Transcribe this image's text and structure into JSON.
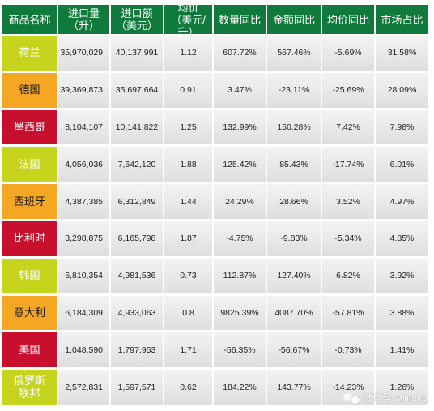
{
  "headers": [
    {
      "line1": "商品名称",
      "line2": ""
    },
    {
      "line1": "进口量",
      "line2": "（升）"
    },
    {
      "line1": "进口额",
      "line2": "（美元）"
    },
    {
      "line1": "均价",
      "line2": "（美元/升）"
    },
    {
      "line1": "数量同比",
      "line2": ""
    },
    {
      "line1": "金额同比",
      "line2": ""
    },
    {
      "line1": "均价同比",
      "line2": ""
    },
    {
      "line1": "市场占比",
      "line2": ""
    }
  ],
  "rows": [
    {
      "name": "荷兰",
      "name2": "",
      "color": "#c6d41d",
      "text_color": "#ffffff",
      "volume": "35,970,029",
      "amount": "40,137,991",
      "price": "1.12",
      "vol_yoy": "607.72%",
      "amt_yoy": "567.46%",
      "price_yoy": "-5.69%",
      "share": "31.58%"
    },
    {
      "name": "德国",
      "name2": "",
      "color": "#f5a623",
      "text_color": "#1a1a1a",
      "volume": "39,369,873",
      "amount": "35,697,664",
      "price": "0.91",
      "vol_yoy": "3.47%",
      "amt_yoy": "-23.11%",
      "price_yoy": "-25.69%",
      "share": "28.09%"
    },
    {
      "name": "墨西哥",
      "name2": "",
      "color": "#c8102e",
      "text_color": "#ffffff",
      "volume": "8,104,107",
      "amount": "10,141,822",
      "price": "1.25",
      "vol_yoy": "132.99%",
      "amt_yoy": "150.28%",
      "price_yoy": "7.42%",
      "share": "7.98%"
    },
    {
      "name": "法国",
      "name2": "",
      "color": "#c6d41d",
      "text_color": "#ffffff",
      "volume": "4,056,036",
      "amount": "7,642,120",
      "price": "1.88",
      "vol_yoy": "125.42%",
      "amt_yoy": "85.43%",
      "price_yoy": "-17.74%",
      "share": "6.01%"
    },
    {
      "name": "西班牙",
      "name2": "",
      "color": "#f5a623",
      "text_color": "#1a1a1a",
      "volume": "4,387,385",
      "amount": "6,312,849",
      "price": "1.44",
      "vol_yoy": "24.29%",
      "amt_yoy": "28.66%",
      "price_yoy": "3.52%",
      "share": "4.97%"
    },
    {
      "name": "比利时",
      "name2": "",
      "color": "#c8102e",
      "text_color": "#ffffff",
      "volume": "3,298,875",
      "amount": "6,165,798",
      "price": "1.87",
      "vol_yoy": "-4.75%",
      "amt_yoy": "-9.83%",
      "price_yoy": "-5.34%",
      "share": "4.85%"
    },
    {
      "name": "韩国",
      "name2": "",
      "color": "#c6d41d",
      "text_color": "#ffffff",
      "volume": "6,810,354",
      "amount": "4,981,536",
      "price": "0.73",
      "vol_yoy": "112.87%",
      "amt_yoy": "127.40%",
      "price_yoy": "6.82%",
      "share": "3.92%"
    },
    {
      "name": "意大利",
      "name2": "",
      "color": "#f5a623",
      "text_color": "#1a1a1a",
      "volume": "6,184,309",
      "amount": "4,933,063",
      "price": "0.8",
      "vol_yoy": "9825.39%",
      "amt_yoy": "4087.70%",
      "price_yoy": "-57.81%",
      "share": "3.88%"
    },
    {
      "name": "美国",
      "name2": "",
      "color": "#c8102e",
      "text_color": "#ffffff",
      "volume": "1,048,590",
      "amount": "1,797,953",
      "price": "1.71",
      "vol_yoy": "-56.35%",
      "amt_yoy": "-56.67%",
      "price_yoy": "-0.73%",
      "share": "1.41%"
    },
    {
      "name": "俄罗斯",
      "name2": "联邦",
      "color": "#c6d41d",
      "text_color": "#ffffff",
      "volume": "2,572,831",
      "amount": "1,597,571",
      "price": "0.62",
      "vol_yoy": "184.22%",
      "amt_yoy": "143.77%",
      "price_yoy": "-14.23%",
      "share": "1.26%"
    }
  ],
  "watermark": {
    "text": "微信号: wineku"
  },
  "colors": {
    "header_bg": "#0f7a3b",
    "lime": "#c6d41d",
    "orange": "#f5a623",
    "red": "#c8102e"
  }
}
